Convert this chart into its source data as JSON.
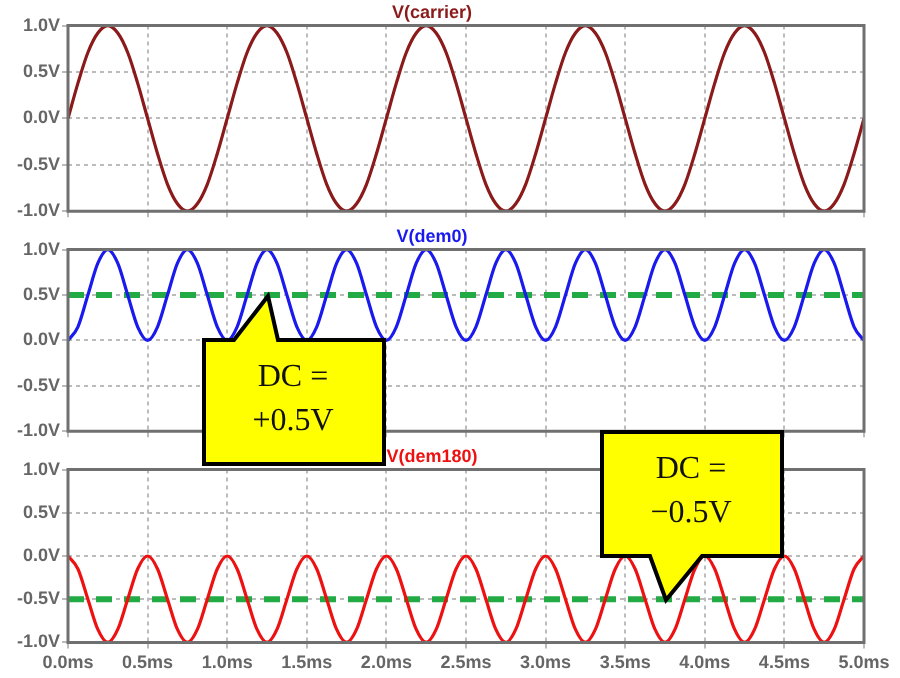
{
  "chart_data": [
    {
      "type": "line",
      "title": "V(carrier)",
      "tick_labels": "y",
      "grid": true,
      "marker": "none",
      "line_style": "solid",
      "xlim": [
        0,
        5
      ],
      "xticks": [
        {
          "value": 0,
          "label": null
        },
        {
          "value": 0.5,
          "label": null
        },
        {
          "value": 1,
          "label": null
        },
        {
          "value": 1.5,
          "label": null
        },
        {
          "value": 2,
          "label": null
        },
        {
          "value": 2.5,
          "label": null
        },
        {
          "value": 3,
          "label": null
        },
        {
          "value": 3.5,
          "label": null
        },
        {
          "value": 4,
          "label": null
        },
        {
          "value": 4.5,
          "label": null
        },
        {
          "value": 5,
          "label": null
        }
      ],
      "ylim": [
        -1,
        1
      ],
      "yticks": [
        {
          "value": 1,
          "label": "1.0V"
        },
        {
          "value": 0.5,
          "label": "0.5V"
        },
        {
          "value": 0,
          "label": "0.0V"
        },
        {
          "value": -0.5,
          "label": "-0.5V"
        },
        {
          "value": -1,
          "label": "-1.0V"
        }
      ],
      "x": [
        0,
        0.0625,
        0.125,
        0.1875,
        0.25,
        0.3125,
        0.375,
        0.4375,
        0.5,
        0.5625,
        0.625,
        0.6875,
        0.75,
        0.8125,
        0.875,
        0.9375,
        1,
        1.0625,
        1.125,
        1.1875,
        1.25,
        1.3125,
        1.375,
        1.4375,
        1.5,
        1.5625,
        1.625,
        1.6875,
        1.75,
        1.8125,
        1.875,
        1.9375,
        2,
        2.0625,
        2.125,
        2.1875,
        2.25,
        2.3125,
        2.375,
        2.4375,
        2.5,
        2.5625,
        2.625,
        2.6875,
        2.75,
        2.8125,
        2.875,
        2.9375,
        3,
        3.0625,
        3.125,
        3.1875,
        3.25,
        3.3125,
        3.375,
        3.4375,
        3.5,
        3.5625,
        3.625,
        3.6875,
        3.75,
        3.8125,
        3.875,
        3.9375,
        4,
        4.0625,
        4.125,
        4.1875,
        4.25,
        4.3125,
        4.375,
        4.4375,
        4.5,
        4.5625,
        4.625,
        4.6875,
        4.75,
        4.8125,
        4.875,
        4.9375,
        5
      ],
      "series": [
        {
          "color": "#8b1a1a",
          "values": [
            0,
            0.38,
            0.71,
            0.92,
            1,
            0.92,
            0.71,
            0.38,
            0,
            -0.38,
            -0.71,
            -0.92,
            -1,
            -0.92,
            -0.71,
            -0.38,
            0,
            0.38,
            0.71,
            0.92,
            1,
            0.92,
            0.71,
            0.38,
            0,
            -0.38,
            -0.71,
            -0.92,
            -1,
            -0.92,
            -0.71,
            -0.38,
            0,
            0.38,
            0.71,
            0.92,
            1,
            0.92,
            0.71,
            0.38,
            0,
            -0.38,
            -0.71,
            -0.92,
            -1,
            -0.92,
            -0.71,
            -0.38,
            0,
            0.38,
            0.71,
            0.92,
            1,
            0.92,
            0.71,
            0.38,
            0,
            -0.38,
            -0.71,
            -0.92,
            -1,
            -0.92,
            -0.71,
            -0.38,
            0,
            0.38,
            0.71,
            0.92,
            1,
            0.92,
            0.71,
            0.38,
            0,
            -0.38,
            -0.71,
            -0.92,
            -1,
            -0.92,
            -0.71,
            -0.38,
            0
          ]
        }
      ]
    },
    {
      "type": "line",
      "title": "V(dem0)",
      "tick_labels": "y",
      "grid": true,
      "marker": "none",
      "line_style": "solid",
      "xlim": [
        0,
        5
      ],
      "xticks": [
        {
          "value": 0,
          "label": null
        },
        {
          "value": 0.5,
          "label": null
        },
        {
          "value": 1,
          "label": null
        },
        {
          "value": 1.5,
          "label": null
        },
        {
          "value": 2,
          "label": null
        },
        {
          "value": 2.5,
          "label": null
        },
        {
          "value": 3,
          "label": null
        },
        {
          "value": 3.5,
          "label": null
        },
        {
          "value": 4,
          "label": null
        },
        {
          "value": 4.5,
          "label": null
        },
        {
          "value": 5,
          "label": null
        }
      ],
      "ylim": [
        -1,
        1
      ],
      "yticks": [
        {
          "value": 1,
          "label": "1.0V"
        },
        {
          "value": 0.5,
          "label": "0.5V"
        },
        {
          "value": 0,
          "label": "0.0V"
        },
        {
          "value": -0.5,
          "label": "-0.5V"
        },
        {
          "value": -1,
          "label": "-1.0V"
        }
      ],
      "x": [
        0,
        0.0625,
        0.125,
        0.1875,
        0.25,
        0.3125,
        0.375,
        0.4375,
        0.5,
        0.5625,
        0.625,
        0.6875,
        0.75,
        0.8125,
        0.875,
        0.9375,
        1,
        1.0625,
        1.125,
        1.1875,
        1.25,
        1.3125,
        1.375,
        1.4375,
        1.5,
        1.5625,
        1.625,
        1.6875,
        1.75,
        1.8125,
        1.875,
        1.9375,
        2,
        2.0625,
        2.125,
        2.1875,
        2.25,
        2.3125,
        2.375,
        2.4375,
        2.5,
        2.5625,
        2.625,
        2.6875,
        2.75,
        2.8125,
        2.875,
        2.9375,
        3,
        3.0625,
        3.125,
        3.1875,
        3.25,
        3.3125,
        3.375,
        3.4375,
        3.5,
        3.5625,
        3.625,
        3.6875,
        3.75,
        3.8125,
        3.875,
        3.9375,
        4,
        4.0625,
        4.125,
        4.1875,
        4.25,
        4.3125,
        4.375,
        4.4375,
        4.5,
        4.5625,
        4.625,
        4.6875,
        4.75,
        4.8125,
        4.875,
        4.9375,
        5
      ],
      "series": [
        {
          "color": "#1a1aee",
          "values": [
            0,
            0.15,
            0.5,
            0.85,
            1,
            0.85,
            0.5,
            0.15,
            0,
            0.15,
            0.5,
            0.85,
            1,
            0.85,
            0.5,
            0.15,
            0,
            0.15,
            0.5,
            0.85,
            1,
            0.85,
            0.5,
            0.15,
            0,
            0.15,
            0.5,
            0.85,
            1,
            0.85,
            0.5,
            0.15,
            0,
            0.15,
            0.5,
            0.85,
            1,
            0.85,
            0.5,
            0.15,
            0,
            0.15,
            0.5,
            0.85,
            1,
            0.85,
            0.5,
            0.15,
            0,
            0.15,
            0.5,
            0.85,
            1,
            0.85,
            0.5,
            0.15,
            0,
            0.15,
            0.5,
            0.85,
            1,
            0.85,
            0.5,
            0.15,
            0,
            0.15,
            0.5,
            0.85,
            1,
            0.85,
            0.5,
            0.15,
            0,
            0.15,
            0.5,
            0.85,
            1,
            0.85,
            0.5,
            0.15,
            0
          ]
        }
      ],
      "ref_lines": [
        {
          "axis": "y",
          "value": 0.5,
          "color": "#22aa44",
          "line_style": "dashed"
        }
      ],
      "annotations": [
        {
          "text": "DC = +0.5V",
          "x": 1.25,
          "y": 0.5
        }
      ]
    },
    {
      "type": "line",
      "title": "V(dem180)",
      "grid": true,
      "marker": "none",
      "line_style": "solid",
      "xlim": [
        0,
        5
      ],
      "xticks": [
        {
          "value": 0,
          "label": "0.0ms"
        },
        {
          "value": 0.5,
          "label": "0.5ms"
        },
        {
          "value": 1,
          "label": "1.0ms"
        },
        {
          "value": 1.5,
          "label": "1.5ms"
        },
        {
          "value": 2,
          "label": "2.0ms"
        },
        {
          "value": 2.5,
          "label": "2.5ms"
        },
        {
          "value": 3,
          "label": "3.0ms"
        },
        {
          "value": 3.5,
          "label": "3.5ms"
        },
        {
          "value": 4,
          "label": "4.0ms"
        },
        {
          "value": 4.5,
          "label": "4.5ms"
        },
        {
          "value": 5,
          "label": "5.0ms"
        }
      ],
      "ylim": [
        -1,
        1
      ],
      "yticks": [
        {
          "value": 1,
          "label": "1.0V"
        },
        {
          "value": 0.5,
          "label": "0.5V"
        },
        {
          "value": 0,
          "label": "0.0V"
        },
        {
          "value": -0.5,
          "label": "-0.5V"
        },
        {
          "value": -1,
          "label": "-1.0V"
        }
      ],
      "x": [
        0,
        0.0625,
        0.125,
        0.1875,
        0.25,
        0.3125,
        0.375,
        0.4375,
        0.5,
        0.5625,
        0.625,
        0.6875,
        0.75,
        0.8125,
        0.875,
        0.9375,
        1,
        1.0625,
        1.125,
        1.1875,
        1.25,
        1.3125,
        1.375,
        1.4375,
        1.5,
        1.5625,
        1.625,
        1.6875,
        1.75,
        1.8125,
        1.875,
        1.9375,
        2,
        2.0625,
        2.125,
        2.1875,
        2.25,
        2.3125,
        2.375,
        2.4375,
        2.5,
        2.5625,
        2.625,
        2.6875,
        2.75,
        2.8125,
        2.875,
        2.9375,
        3,
        3.0625,
        3.125,
        3.1875,
        3.25,
        3.3125,
        3.375,
        3.4375,
        3.5,
        3.5625,
        3.625,
        3.6875,
        3.75,
        3.8125,
        3.875,
        3.9375,
        4,
        4.0625,
        4.125,
        4.1875,
        4.25,
        4.3125,
        4.375,
        4.4375,
        4.5,
        4.5625,
        4.625,
        4.6875,
        4.75,
        4.8125,
        4.875,
        4.9375,
        5
      ],
      "series": [
        {
          "color": "#ee1111",
          "values": [
            0,
            -0.15,
            -0.5,
            -0.85,
            -1,
            -0.85,
            -0.5,
            -0.15,
            0,
            -0.15,
            -0.5,
            -0.85,
            -1,
            -0.85,
            -0.5,
            -0.15,
            0,
            -0.15,
            -0.5,
            -0.85,
            -1,
            -0.85,
            -0.5,
            -0.15,
            0,
            -0.15,
            -0.5,
            -0.85,
            -1,
            -0.85,
            -0.5,
            -0.15,
            0,
            -0.15,
            -0.5,
            -0.85,
            -1,
            -0.85,
            -0.5,
            -0.15,
            0,
            -0.15,
            -0.5,
            -0.85,
            -1,
            -0.85,
            -0.5,
            -0.15,
            0,
            -0.15,
            -0.5,
            -0.85,
            -1,
            -0.85,
            -0.5,
            -0.15,
            0,
            -0.15,
            -0.5,
            -0.85,
            -1,
            -0.85,
            -0.5,
            -0.15,
            0,
            -0.15,
            -0.5,
            -0.85,
            -1,
            -0.85,
            -0.5,
            -0.15,
            0,
            -0.15,
            -0.5,
            -0.85,
            -1,
            -0.85,
            -0.5,
            -0.15,
            0
          ]
        }
      ],
      "ref_lines": [
        {
          "axis": "y",
          "value": -0.5,
          "color": "#22aa44",
          "line_style": "dashed"
        }
      ],
      "annotations": [
        {
          "text": "DC = −0.5V",
          "x": 3.75,
          "y": -0.5
        }
      ]
    }
  ]
}
